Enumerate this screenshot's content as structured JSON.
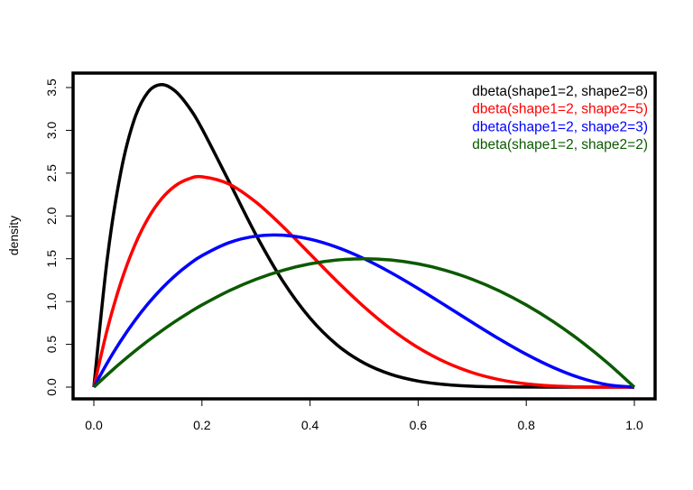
{
  "chart_data": {
    "type": "line",
    "title": "",
    "xlabel": "",
    "ylabel": "density",
    "xlim": [
      0,
      1
    ],
    "ylim": [
      0,
      3.5
    ],
    "grid": false,
    "legend_position": "top-right",
    "x_ticks": [
      "0.0",
      "0.2",
      "0.4",
      "0.6",
      "0.8",
      "1.0"
    ],
    "y_ticks": [
      "0.0",
      "0.5",
      "1.0",
      "1.5",
      "2.0",
      "2.5",
      "3.0",
      "3.5"
    ],
    "x": [
      0,
      0.025,
      0.05,
      0.075,
      0.1,
      0.125,
      0.15,
      0.175,
      0.2,
      0.25,
      0.3,
      0.35,
      0.4,
      0.45,
      0.5,
      0.55,
      0.6,
      0.65,
      0.7,
      0.75,
      0.8,
      0.85,
      0.9,
      0.95,
      1
    ],
    "series": [
      {
        "name": "dbeta(shape1=2, shape2=8)",
        "color": "#000000",
        "values": [
          0,
          1.508,
          2.514,
          3.129,
          3.444,
          3.534,
          3.462,
          3.278,
          3.02,
          2.403,
          1.779,
          1.235,
          0.806,
          0.493,
          0.281,
          0.148,
          0.0708,
          0.0301,
          0.011,
          0.0033,
          0.0007,
          0.0001,
          0,
          0,
          0
        ]
      },
      {
        "name": "dbeta(shape1=2, shape2=5)",
        "color": "#ff0000",
        "values": [
          0,
          0.678,
          1.222,
          1.647,
          1.968,
          2.198,
          2.349,
          2.432,
          2.458,
          2.373,
          2.161,
          1.874,
          1.555,
          1.235,
          0.9375,
          0.677,
          0.461,
          0.293,
          0.17,
          0.0879,
          0.0384,
          0.0129,
          0.0027,
          0.0002,
          0
        ]
      },
      {
        "name": "dbeta(shape1=2, shape2=3)",
        "color": "#0000ff",
        "values": [
          0,
          0.285,
          0.5415,
          0.77,
          0.972,
          1.148,
          1.3005,
          1.429,
          1.536,
          1.6875,
          1.764,
          1.7745,
          1.728,
          1.6335,
          1.5,
          1.3365,
          1.152,
          0.9555,
          0.756,
          0.5625,
          0.384,
          0.2295,
          0.108,
          0.0285,
          0
        ]
      },
      {
        "name": "dbeta(shape1=2, shape2=2)",
        "color": "#0b5a00",
        "values": [
          0,
          0.146,
          0.285,
          0.416,
          0.54,
          0.656,
          0.765,
          0.866,
          0.96,
          1.125,
          1.26,
          1.365,
          1.44,
          1.485,
          1.5,
          1.485,
          1.44,
          1.365,
          1.26,
          1.125,
          0.96,
          0.765,
          0.54,
          0.285,
          0
        ]
      }
    ]
  }
}
